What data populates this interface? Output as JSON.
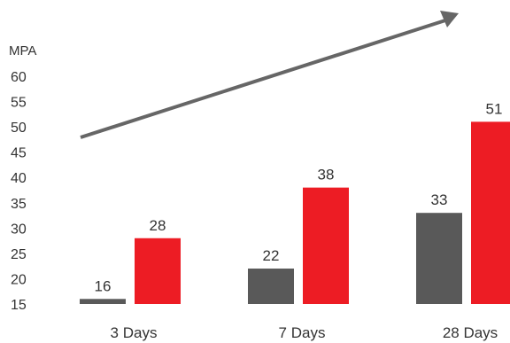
{
  "chart_data": {
    "type": "bar",
    "ylabel": "MPA",
    "categories": [
      "3 Days",
      "7 Days",
      "28 Days"
    ],
    "series": [
      {
        "values": [
          16,
          22,
          33
        ]
      },
      {
        "values": [
          28,
          38,
          51
        ]
      }
    ],
    "ylim": [
      15,
      60
    ],
    "yticks": [
      15,
      20,
      25,
      30,
      35,
      40,
      45,
      50,
      55,
      60
    ],
    "grid": false,
    "legend": "none",
    "annotations": [
      "trend-arrow"
    ]
  },
  "colors": {
    "series_0": "#595959",
    "series_1": "#ed1c24",
    "arrow": "#666666",
    "text": "#333333"
  }
}
